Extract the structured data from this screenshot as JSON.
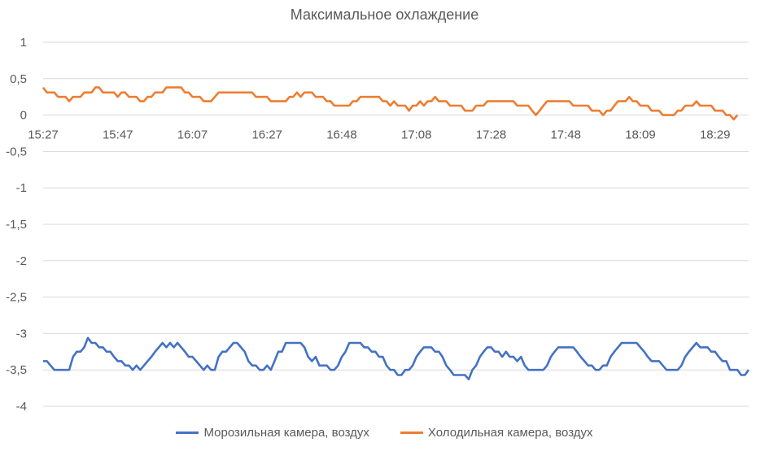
{
  "chart_data": {
    "type": "line",
    "title": "Максимальное охлаждение",
    "xlabel": "",
    "ylabel": "",
    "ylim": [
      -4,
      1
    ],
    "y_ticks": [
      1,
      0.5,
      0,
      -0.5,
      -1,
      -1.5,
      -2,
      -2.5,
      -3,
      -3.5,
      -4
    ],
    "y_tick_labels": [
      "1",
      "0,5",
      "0",
      "-0,5",
      "-1",
      "-1,5",
      "-2",
      "-2,5",
      "-3",
      "-3,5",
      "-4"
    ],
    "x_tick_labels": [
      "15:27",
      "15:47",
      "16:07",
      "16:27",
      "16:48",
      "17:08",
      "17:28",
      "17:48",
      "18:09",
      "18:29"
    ],
    "x_tick_index": [
      0,
      20,
      40,
      60,
      80,
      100,
      120,
      140,
      160,
      180
    ],
    "grid": true,
    "legend_position": "bottom",
    "series": [
      {
        "name": "Морозильная камера, воздух",
        "color": "#4472c4",
        "values": [
          -3.38,
          -3.38,
          -3.44,
          -3.5,
          -3.5,
          -3.5,
          -3.5,
          -3.5,
          -3.32,
          -3.25,
          -3.25,
          -3.19,
          -3.06,
          -3.13,
          -3.13,
          -3.19,
          -3.19,
          -3.25,
          -3.25,
          -3.32,
          -3.38,
          -3.38,
          -3.44,
          -3.44,
          -3.5,
          -3.44,
          -3.5,
          -3.44,
          -3.38,
          -3.32,
          -3.25,
          -3.19,
          -3.13,
          -3.19,
          -3.13,
          -3.19,
          -3.13,
          -3.19,
          -3.25,
          -3.32,
          -3.32,
          -3.38,
          -3.44,
          -3.5,
          -3.44,
          -3.5,
          -3.5,
          -3.32,
          -3.25,
          -3.25,
          -3.19,
          -3.13,
          -3.13,
          -3.19,
          -3.25,
          -3.38,
          -3.44,
          -3.44,
          -3.5,
          -3.5,
          -3.44,
          -3.5,
          -3.38,
          -3.25,
          -3.25,
          -3.13,
          -3.13,
          -3.13,
          -3.13,
          -3.13,
          -3.19,
          -3.32,
          -3.38,
          -3.32,
          -3.44,
          -3.44,
          -3.44,
          -3.5,
          -3.5,
          -3.44,
          -3.32,
          -3.25,
          -3.13,
          -3.13,
          -3.13,
          -3.13,
          -3.19,
          -3.19,
          -3.25,
          -3.25,
          -3.32,
          -3.32,
          -3.44,
          -3.5,
          -3.5,
          -3.57,
          -3.57,
          -3.5,
          -3.5,
          -3.44,
          -3.32,
          -3.25,
          -3.19,
          -3.19,
          -3.19,
          -3.25,
          -3.25,
          -3.32,
          -3.44,
          -3.5,
          -3.57,
          -3.57,
          -3.57,
          -3.57,
          -3.63,
          -3.5,
          -3.44,
          -3.32,
          -3.25,
          -3.19,
          -3.19,
          -3.25,
          -3.25,
          -3.32,
          -3.25,
          -3.32,
          -3.32,
          -3.38,
          -3.32,
          -3.44,
          -3.5,
          -3.5,
          -3.5,
          -3.5,
          -3.5,
          -3.44,
          -3.32,
          -3.25,
          -3.19,
          -3.19,
          -3.19,
          -3.19,
          -3.19,
          -3.25,
          -3.32,
          -3.38,
          -3.44,
          -3.44,
          -3.5,
          -3.5,
          -3.44,
          -3.44,
          -3.32,
          -3.25,
          -3.19,
          -3.13,
          -3.13,
          -3.13,
          -3.13,
          -3.13,
          -3.19,
          -3.25,
          -3.32,
          -3.38,
          -3.38,
          -3.38,
          -3.44,
          -3.5,
          -3.5,
          -3.5,
          -3.5,
          -3.44,
          -3.32,
          -3.25,
          -3.19,
          -3.13,
          -3.19,
          -3.19,
          -3.19,
          -3.25,
          -3.25,
          -3.32,
          -3.38,
          -3.38,
          -3.5,
          -3.5,
          -3.5,
          -3.57,
          -3.57,
          -3.5
        ]
      },
      {
        "name": "Холодильная камера, воздух",
        "color": "#ed7d31",
        "values": [
          0.38,
          0.31,
          0.31,
          0.31,
          0.25,
          0.25,
          0.25,
          0.19,
          0.25,
          0.25,
          0.25,
          0.31,
          0.31,
          0.31,
          0.38,
          0.38,
          0.31,
          0.31,
          0.31,
          0.31,
          0.25,
          0.31,
          0.31,
          0.25,
          0.25,
          0.25,
          0.19,
          0.19,
          0.25,
          0.25,
          0.31,
          0.31,
          0.31,
          0.38,
          0.38,
          0.38,
          0.38,
          0.38,
          0.31,
          0.31,
          0.25,
          0.25,
          0.25,
          0.19,
          0.19,
          0.19,
          0.25,
          0.31,
          0.31,
          0.31,
          0.31,
          0.31,
          0.31,
          0.31,
          0.31,
          0.31,
          0.31,
          0.25,
          0.25,
          0.25,
          0.25,
          0.19,
          0.19,
          0.19,
          0.19,
          0.19,
          0.25,
          0.25,
          0.31,
          0.25,
          0.31,
          0.31,
          0.31,
          0.25,
          0.25,
          0.25,
          0.19,
          0.19,
          0.13,
          0.13,
          0.13,
          0.13,
          0.13,
          0.19,
          0.19,
          0.25,
          0.25,
          0.25,
          0.25,
          0.25,
          0.25,
          0.19,
          0.19,
          0.13,
          0.19,
          0.13,
          0.13,
          0.13,
          0.06,
          0.13,
          0.13,
          0.19,
          0.13,
          0.19,
          0.19,
          0.25,
          0.19,
          0.19,
          0.19,
          0.13,
          0.13,
          0.13,
          0.13,
          0.06,
          0.06,
          0.06,
          0.13,
          0.13,
          0.13,
          0.19,
          0.19,
          0.19,
          0.19,
          0.19,
          0.19,
          0.19,
          0.19,
          0.13,
          0.13,
          0.13,
          0.13,
          0.06,
          0.0,
          0.06,
          0.13,
          0.19,
          0.19,
          0.19,
          0.19,
          0.19,
          0.19,
          0.19,
          0.13,
          0.13,
          0.13,
          0.13,
          0.13,
          0.06,
          0.06,
          0.06,
          0.0,
          0.06,
          0.06,
          0.13,
          0.19,
          0.19,
          0.19,
          0.25,
          0.19,
          0.19,
          0.13,
          0.13,
          0.13,
          0.06,
          0.06,
          0.06,
          0.0,
          0.0,
          0.0,
          0.0,
          0.06,
          0.06,
          0.13,
          0.13,
          0.13,
          0.19,
          0.13,
          0.13,
          0.13,
          0.13,
          0.06,
          0.06,
          0.06,
          0.0,
          0.0,
          -0.06,
          0.0
        ]
      }
    ]
  }
}
